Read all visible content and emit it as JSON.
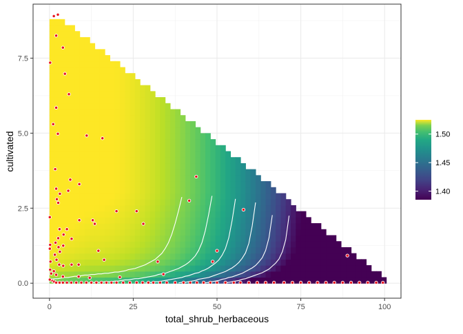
{
  "chart_data": {
    "type": "heatmap",
    "title": "",
    "xlabel": "total_shrub_herbaceous",
    "ylabel": "cultivated",
    "xlim": [
      -4.9,
      104.9
    ],
    "ylim": [
      -0.5,
      9.3
    ],
    "x_ticks": [
      0,
      25,
      50,
      75,
      100
    ],
    "x_tick_labels": [
      "0",
      "25",
      "50",
      "75",
      "100"
    ],
    "y_ticks": [
      0,
      2.5,
      5,
      7.5
    ],
    "y_tick_labels": [
      "0.0",
      "2.5",
      "5.0",
      "7.5"
    ],
    "grid": true,
    "colorscale": "viridis",
    "colorbar": {
      "range": [
        1.385,
        1.525
      ],
      "ticks": [
        1.4,
        1.45,
        1.5
      ],
      "tick_labels": [
        "1.40",
        "1.45",
        "1.50"
      ],
      "placement": "right"
    },
    "surface_region": "x + y <= 100, 0 <= y <= 8.8",
    "contour_levels": [
      1.4,
      1.42,
      1.44,
      1.46,
      1.48,
      1.5
    ],
    "contour_color": "#ffffff",
    "point_color": "#e8141e",
    "points": [
      [
        2.5,
        8.95
      ],
      [
        1.3,
        8.9
      ],
      [
        2.0,
        8.25
      ],
      [
        4.0,
        7.85
      ],
      [
        0.2,
        7.35
      ],
      [
        4.6,
        6.98
      ],
      [
        5.8,
        6.3
      ],
      [
        2.0,
        5.85
      ],
      [
        1.1,
        5.3
      ],
      [
        2.5,
        4.98
      ],
      [
        11.1,
        4.92
      ],
      [
        15.8,
        4.83
      ],
      [
        1.7,
        3.8
      ],
      [
        2.0,
        3.15
      ],
      [
        6.2,
        3.45
      ],
      [
        8.9,
        3.3
      ],
      [
        3.1,
        2.98
      ],
      [
        5.6,
        3.08
      ],
      [
        2.2,
        2.8
      ],
      [
        2.6,
        2.68
      ],
      [
        20.0,
        2.4
      ],
      [
        26.0,
        2.4
      ],
      [
        12.9,
        2.1
      ],
      [
        8.9,
        2.1
      ],
      [
        13.5,
        1.98
      ],
      [
        28.0,
        1.98
      ],
      [
        0.1,
        2.2
      ],
      [
        3.0,
        1.8
      ],
      [
        5.2,
        1.8
      ],
      [
        4.2,
        1.62
      ],
      [
        2.6,
        1.5
      ],
      [
        6.6,
        1.48
      ],
      [
        43.8,
        3.55
      ],
      [
        41.7,
        2.75
      ],
      [
        57.9,
        2.45
      ],
      [
        50.0,
        1.08
      ],
      [
        14.6,
        1.08
      ],
      [
        16.3,
        0.78
      ],
      [
        1.8,
        1.35
      ],
      [
        0.2,
        1.28
      ],
      [
        4.1,
        1.25
      ],
      [
        2.7,
        1.2
      ],
      [
        0.1,
        1.15
      ],
      [
        3.1,
        1.05
      ],
      [
        1.6,
        0.95
      ],
      [
        2.1,
        0.78
      ],
      [
        2.9,
        0.62
      ],
      [
        4.1,
        0.58
      ],
      [
        6.6,
        0.62
      ],
      [
        8.7,
        0.62
      ],
      [
        0.3,
        0.72
      ],
      [
        32.3,
        0.72
      ],
      [
        48.7,
        0.72
      ],
      [
        88.9,
        0.92
      ],
      [
        0.2,
        0.45
      ],
      [
        1.3,
        0.4
      ],
      [
        0.5,
        0.32
      ],
      [
        2.0,
        0.28
      ],
      [
        4.0,
        0.22
      ],
      [
        8.7,
        0.22
      ],
      [
        12.0,
        0.18
      ],
      [
        21.0,
        0.2
      ],
      [
        34.0,
        0.3
      ],
      [
        0.1,
        0.12
      ],
      [
        0.9,
        0.08
      ],
      [
        1.4,
        0.05
      ],
      [
        2.0,
        0.02
      ],
      [
        3.0,
        0.02
      ],
      [
        4.0,
        0.02
      ],
      [
        5.2,
        0.02
      ],
      [
        6.5,
        0.02
      ],
      [
        8.0,
        0.02
      ],
      [
        9.5,
        0.02
      ],
      [
        11.0,
        0.02
      ],
      [
        12.5,
        0.02
      ],
      [
        14.0,
        0.02
      ],
      [
        15.5,
        0.02
      ],
      [
        17.0,
        0.02
      ],
      [
        18.5,
        0.02
      ],
      [
        20.0,
        0.02
      ],
      [
        22.0,
        0.02
      ],
      [
        24.0,
        0.02
      ],
      [
        26.0,
        0.02
      ],
      [
        27.8,
        0.02
      ],
      [
        29.5,
        0.02
      ],
      [
        31.0,
        0.02
      ],
      [
        33.0,
        0.02
      ],
      [
        35.0,
        0.02
      ],
      [
        37.5,
        0.02
      ],
      [
        40.0,
        0.02
      ],
      [
        42.0,
        0.02
      ],
      [
        44.0,
        0.02
      ],
      [
        46.0,
        0.02
      ],
      [
        48.0,
        0.02
      ],
      [
        50.0,
        0.02
      ],
      [
        52.5,
        0.02
      ],
      [
        55.0,
        0.02
      ],
      [
        57.0,
        0.02
      ],
      [
        59.5,
        0.02
      ],
      [
        62.0,
        0.02
      ],
      [
        64.5,
        0.02
      ],
      [
        67.0,
        0.02
      ],
      [
        70.0,
        0.02
      ],
      [
        72.5,
        0.02
      ],
      [
        75.0,
        0.02
      ],
      [
        77.5,
        0.02
      ],
      [
        80.0,
        0.02
      ],
      [
        82.5,
        0.02
      ],
      [
        85.0,
        0.02
      ],
      [
        87.5,
        0.02
      ],
      [
        90.0,
        0.02
      ],
      [
        92.5,
        0.02
      ],
      [
        95.0,
        0.02
      ],
      [
        97.5,
        0.02
      ],
      [
        99.5,
        0.02
      ]
    ]
  }
}
